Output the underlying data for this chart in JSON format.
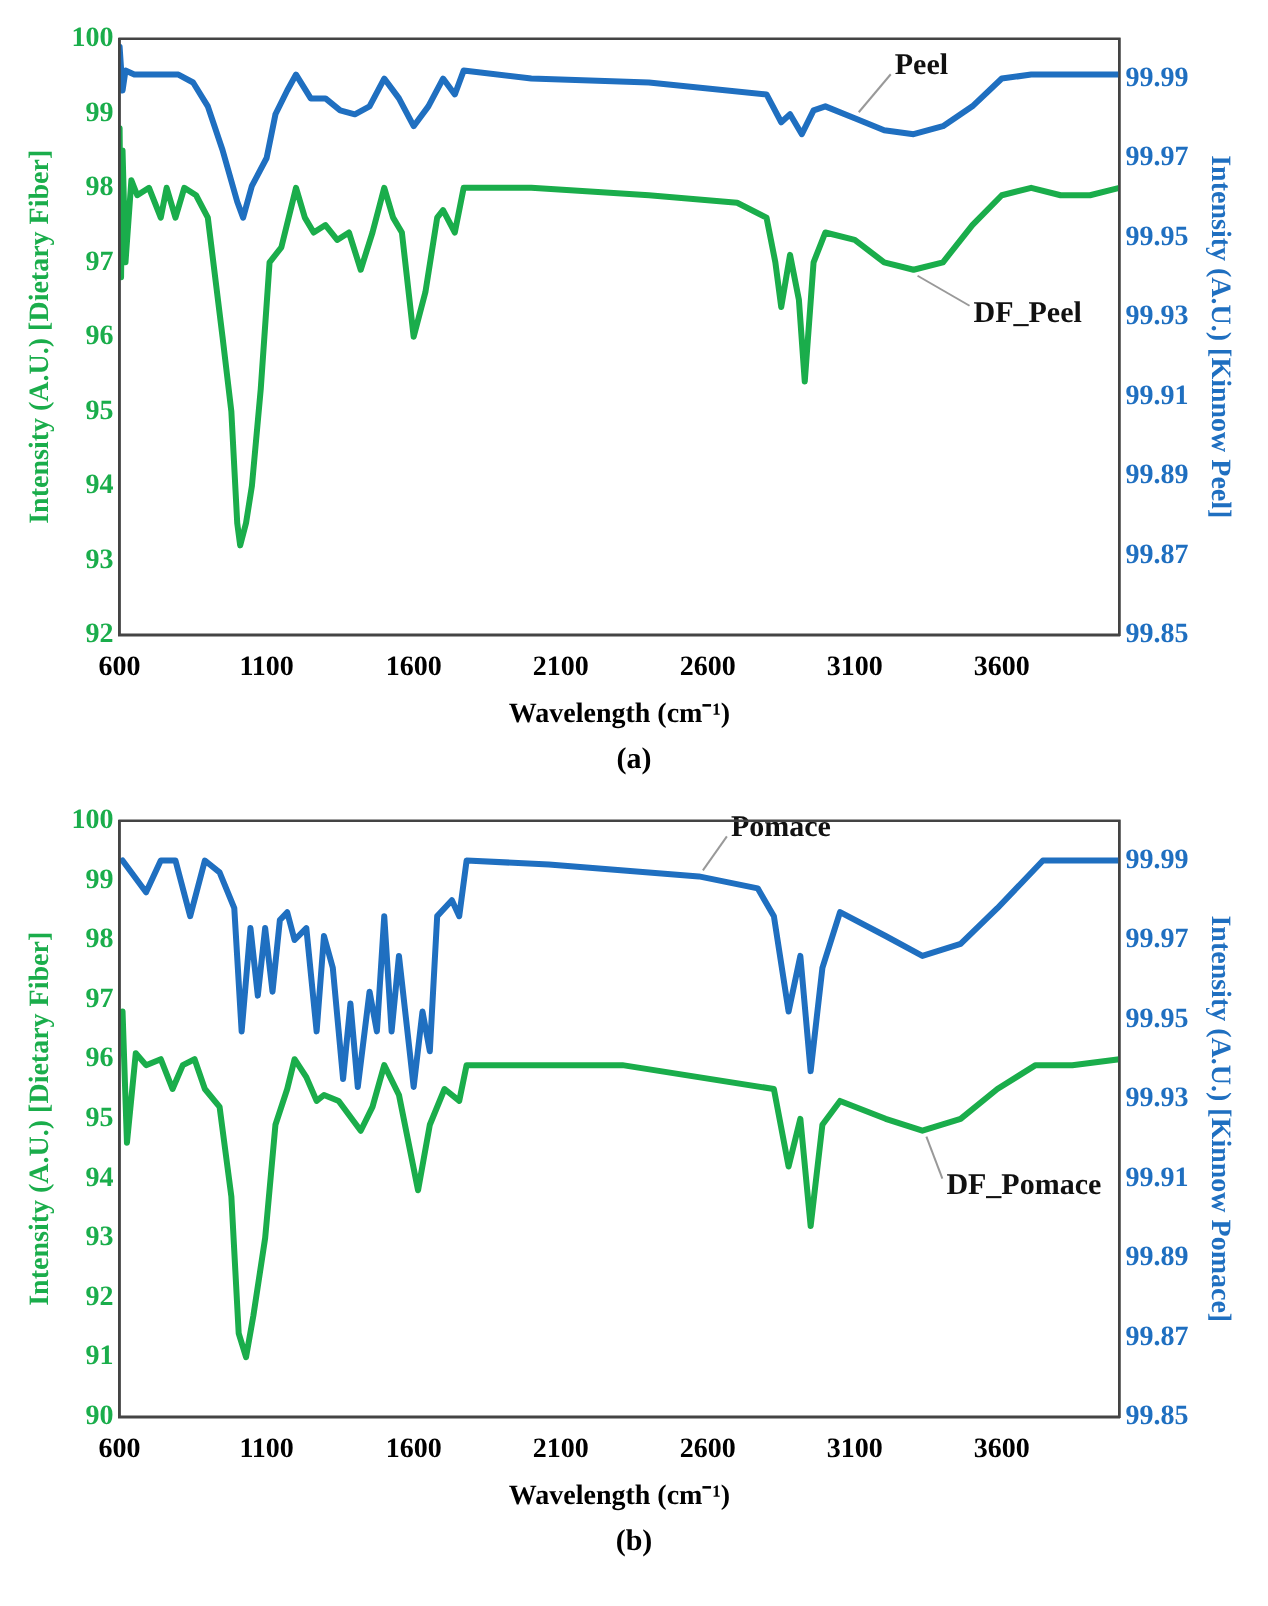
{
  "chart_data": [
    {
      "type": "line",
      "xlabel": "Wavelength (cm⁻¹)",
      "ylabel": "Intensity (A.U.) [Dietary Fiber]",
      "y2label": "Intensity (A.U.) [Kinnow Peel]",
      "annotations": [
        "(a)"
      ],
      "xlim": [
        600,
        4000
      ],
      "xticks": [
        600,
        1100,
        1600,
        2100,
        2600,
        3100,
        3600
      ],
      "ylim": [
        92,
        100
      ],
      "yticks": [
        92,
        93,
        94,
        95,
        96,
        97,
        98,
        99,
        100
      ],
      "y2lim": [
        99.85,
        100
      ],
      "y2ticks": [
        99.85,
        99.87,
        99.89,
        99.91,
        99.93,
        99.95,
        99.97,
        99.99
      ],
      "grid": false,
      "legend": false,
      "marker": "none",
      "line_style": "solid",
      "series": [
        {
          "name": "Peel",
          "color": "#1f6fc0",
          "axis": "y2",
          "x": [
            600,
            610,
            620,
            650,
            700,
            800,
            850,
            900,
            950,
            1000,
            1020,
            1050,
            1100,
            1130,
            1170,
            1200,
            1250,
            1300,
            1350,
            1400,
            1450,
            1500,
            1550,
            1600,
            1650,
            1700,
            1740,
            1770,
            2000,
            2400,
            2800,
            2850,
            2880,
            2920,
            2960,
            3000,
            3100,
            3200,
            3300,
            3400,
            3500,
            3600,
            3700,
            4000
          ],
          "values": [
            99.998,
            99.987,
            99.992,
            99.991,
            99.991,
            99.991,
            99.989,
            99.983,
            99.972,
            99.959,
            99.955,
            99.963,
            99.97,
            99.981,
            99.987,
            99.991,
            99.985,
            99.985,
            99.982,
            99.981,
            99.983,
            99.99,
            99.985,
            99.978,
            99.983,
            99.99,
            99.986,
            99.992,
            99.99,
            99.989,
            99.986,
            99.979,
            99.981,
            99.976,
            99.982,
            99.983,
            99.98,
            99.977,
            99.976,
            99.978,
            99.983,
            99.99,
            99.991,
            99.991
          ]
        },
        {
          "name": "DF_Peel",
          "color": "#1aad4b",
          "axis": "y",
          "x": [
            600,
            605,
            610,
            620,
            640,
            660,
            700,
            740,
            760,
            790,
            820,
            860,
            900,
            950,
            980,
            1000,
            1010,
            1030,
            1050,
            1080,
            1110,
            1150,
            1200,
            1230,
            1260,
            1300,
            1340,
            1380,
            1420,
            1460,
            1500,
            1530,
            1560,
            1600,
            1640,
            1680,
            1700,
            1740,
            1770,
            2000,
            2400,
            2700,
            2800,
            2830,
            2850,
            2880,
            2910,
            2930,
            2960,
            3000,
            3100,
            3200,
            3300,
            3400,
            3500,
            3600,
            3700,
            3800,
            3900,
            4000
          ],
          "values": [
            98.8,
            96.8,
            98.5,
            97.0,
            98.1,
            97.9,
            98.0,
            97.6,
            98.0,
            97.6,
            98.0,
            97.9,
            97.6,
            96.0,
            95.0,
            93.5,
            93.2,
            93.5,
            94.0,
            95.3,
            97.0,
            97.2,
            98.0,
            97.6,
            97.4,
            97.5,
            97.3,
            97.4,
            96.9,
            97.4,
            98.0,
            97.6,
            97.4,
            96.0,
            96.6,
            97.6,
            97.7,
            97.4,
            98.0,
            98.0,
            97.9,
            97.8,
            97.6,
            97.0,
            96.4,
            97.1,
            96.5,
            95.4,
            97.0,
            97.4,
            97.3,
            97.0,
            96.9,
            97.0,
            97.5,
            97.9,
            98.0,
            97.9,
            97.9,
            98.0
          ]
        }
      ]
    },
    {
      "type": "line",
      "xlabel": "Wavelength (cm⁻¹)",
      "ylabel": "Intensity (A.U.) [Dietary Fiber]",
      "y2label": "Intensity (A.U.) [Kinnow Pomace]",
      "annotations": [
        "(b)"
      ],
      "xlim": [
        600,
        4000
      ],
      "xticks": [
        600,
        1100,
        1600,
        2100,
        2600,
        3100,
        3600
      ],
      "ylim": [
        90,
        100
      ],
      "yticks": [
        90,
        91,
        92,
        93,
        94,
        95,
        96,
        97,
        98,
        99,
        100
      ],
      "y2lim": [
        99.85,
        100
      ],
      "y2ticks": [
        99.85,
        99.87,
        99.89,
        99.91,
        99.93,
        99.95,
        99.97,
        99.99
      ],
      "grid": false,
      "legend": false,
      "marker": "none",
      "line_style": "solid",
      "series": [
        {
          "name": "Pomace",
          "color": "#1f6fc0",
          "axis": "y2",
          "x": [
            610,
            690,
            740,
            790,
            840,
            890,
            940,
            990,
            1015,
            1045,
            1070,
            1095,
            1120,
            1145,
            1170,
            1195,
            1235,
            1270,
            1295,
            1325,
            1360,
            1385,
            1410,
            1450,
            1475,
            1500,
            1525,
            1550,
            1600,
            1630,
            1655,
            1680,
            1730,
            1755,
            1780,
            2060,
            2570,
            2770,
            2825,
            2875,
            2915,
            2950,
            2990,
            3050,
            3205,
            3330,
            3460,
            3585,
            3740,
            4000
          ],
          "values": [
            99.99,
            99.982,
            99.99,
            99.99,
            99.976,
            99.99,
            99.987,
            99.978,
            99.947,
            99.973,
            99.956,
            99.973,
            99.957,
            99.975,
            99.977,
            99.97,
            99.973,
            99.947,
            99.971,
            99.963,
            99.935,
            99.954,
            99.933,
            99.957,
            99.947,
            99.976,
            99.947,
            99.966,
            99.933,
            99.952,
            99.942,
            99.976,
            99.98,
            99.976,
            99.99,
            99.989,
            99.986,
            99.983,
            99.976,
            99.952,
            99.966,
            99.937,
            99.963,
            99.977,
            99.971,
            99.966,
            99.969,
            99.978,
            99.99,
            99.99
          ]
        },
        {
          "name": "DF_Pomace",
          "color": "#1aad4b",
          "axis": "y",
          "x": [
            610,
            625,
            655,
            690,
            740,
            780,
            815,
            855,
            890,
            940,
            980,
            1005,
            1030,
            1055,
            1095,
            1130,
            1170,
            1195,
            1235,
            1270,
            1295,
            1345,
            1420,
            1460,
            1500,
            1550,
            1615,
            1655,
            1705,
            1755,
            1780,
            2310,
            2825,
            2875,
            2915,
            2950,
            2990,
            3050,
            3205,
            3330,
            3460,
            3585,
            3715,
            3840,
            4000
          ],
          "values": [
            96.8,
            94.6,
            96.1,
            95.9,
            96.0,
            95.5,
            95.9,
            96.0,
            95.5,
            95.2,
            93.7,
            91.4,
            91.0,
            91.7,
            93.0,
            94.9,
            95.5,
            96.0,
            95.7,
            95.3,
            95.4,
            95.3,
            94.8,
            95.2,
            95.9,
            95.4,
            93.8,
            94.9,
            95.5,
            95.3,
            95.9,
            95.9,
            95.5,
            94.2,
            95.0,
            93.2,
            94.9,
            95.3,
            95.0,
            94.8,
            95.0,
            95.5,
            95.9,
            95.9,
            96.0
          ]
        }
      ]
    }
  ]
}
